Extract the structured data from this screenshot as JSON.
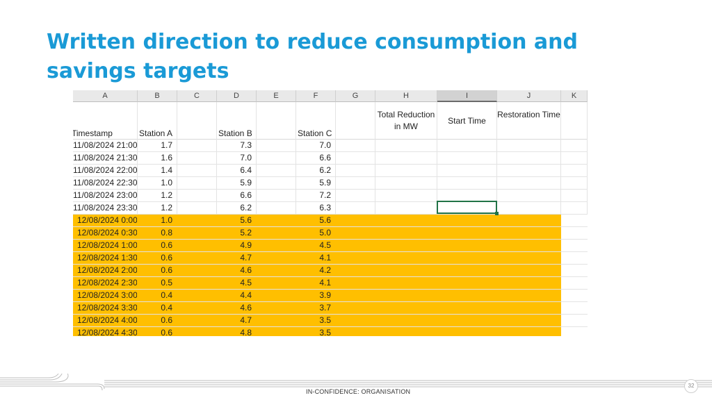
{
  "slide": {
    "title": "Written direction to reduce consumption and savings targets",
    "footer": "IN-CONFIDENCE: ORGANISATION",
    "page_number": "32"
  },
  "sheet": {
    "columns": [
      "A",
      "B",
      "C",
      "D",
      "E",
      "F",
      "G",
      "H",
      "I",
      "J",
      "K"
    ],
    "selected_column": "I",
    "headers": {
      "timestamp": "Timestamp",
      "station_a": "Station A",
      "station_b": "Station B",
      "station_c": "Station C",
      "total_reduction": "Total Reduction in MW",
      "start_time": "Start Time",
      "restoration_time": "Restoration Time"
    },
    "rows": [
      {
        "ts": "11/08/2024 21:00",
        "a": "1.7",
        "b": "7.3",
        "c": "7.0",
        "highlight": false
      },
      {
        "ts": "11/08/2024 21:30",
        "a": "1.6",
        "b": "7.0",
        "c": "6.6",
        "highlight": false
      },
      {
        "ts": "11/08/2024 22:00",
        "a": "1.4",
        "b": "6.4",
        "c": "6.2",
        "highlight": false
      },
      {
        "ts": "11/08/2024 22:30",
        "a": "1.0",
        "b": "5.9",
        "c": "5.9",
        "highlight": false
      },
      {
        "ts": "11/08/2024 23:00",
        "a": "1.2",
        "b": "6.6",
        "c": "7.2",
        "highlight": false
      },
      {
        "ts": "11/08/2024 23:30",
        "a": "1.2",
        "b": "6.2",
        "c": "6.3",
        "highlight": false
      },
      {
        "ts": "12/08/2024 0:00",
        "a": "1.0",
        "b": "5.6",
        "c": "5.6",
        "highlight": true
      },
      {
        "ts": "12/08/2024 0:30",
        "a": "0.8",
        "b": "5.2",
        "c": "5.0",
        "highlight": true
      },
      {
        "ts": "12/08/2024 1:00",
        "a": "0.6",
        "b": "4.9",
        "c": "4.5",
        "highlight": true
      },
      {
        "ts": "12/08/2024 1:30",
        "a": "0.6",
        "b": "4.7",
        "c": "4.1",
        "highlight": true
      },
      {
        "ts": "12/08/2024 2:00",
        "a": "0.6",
        "b": "4.6",
        "c": "4.2",
        "highlight": true
      },
      {
        "ts": "12/08/2024 2:30",
        "a": "0.5",
        "b": "4.5",
        "c": "4.1",
        "highlight": true
      },
      {
        "ts": "12/08/2024 3:00",
        "a": "0.4",
        "b": "4.4",
        "c": "3.9",
        "highlight": true
      },
      {
        "ts": "12/08/2024 3:30",
        "a": "0.4",
        "b": "4.6",
        "c": "3.7",
        "highlight": true
      },
      {
        "ts": "12/08/2024 4:00",
        "a": "0.6",
        "b": "4.7",
        "c": "3.5",
        "highlight": true
      },
      {
        "ts": "12/08/2024 4:30",
        "a": "0.6",
        "b": "4.8",
        "c": "3.5",
        "highlight": true
      }
    ],
    "colors": {
      "title": "#1a9ad6",
      "highlight": "#ffbf00",
      "active_cell": "#217346"
    }
  }
}
